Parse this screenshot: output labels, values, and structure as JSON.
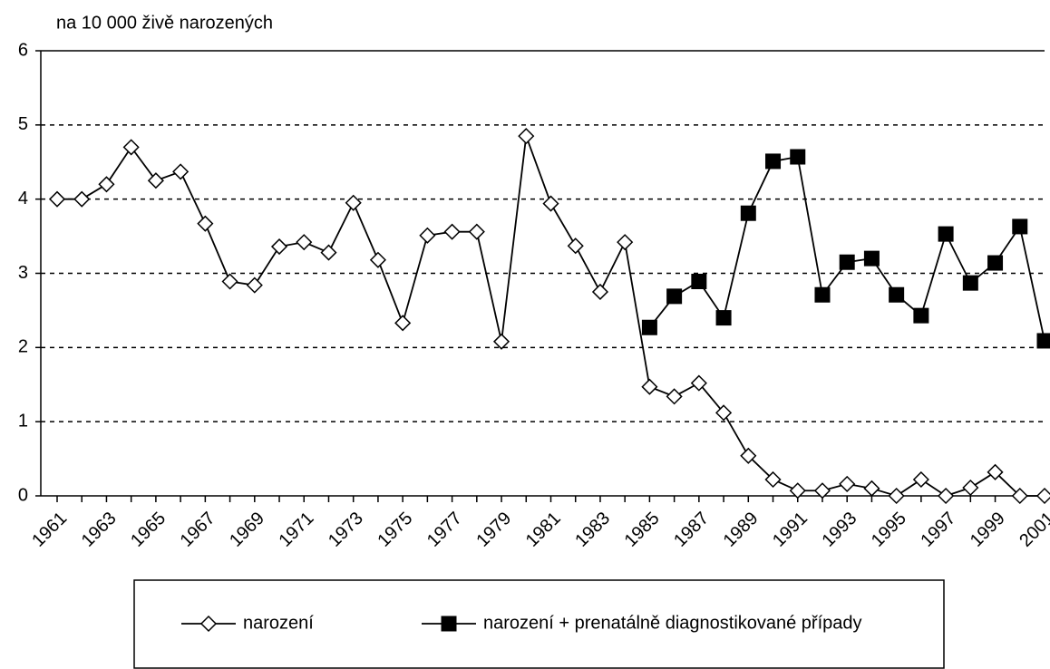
{
  "chart_data": {
    "type": "line",
    "y_label": "na 10 000 živě narozených",
    "categories": [
      "1961",
      null,
      "1963",
      null,
      "1965",
      null,
      "1967",
      null,
      "1969",
      null,
      "1971",
      null,
      "1973",
      null,
      "1975",
      null,
      "1977",
      null,
      "1979",
      null,
      "1981",
      null,
      "1983",
      null,
      "1985",
      null,
      "1987",
      null,
      "1989",
      null,
      "1991",
      null,
      "1993",
      null,
      "1995",
      null,
      "1997",
      null,
      "1999",
      null,
      "2001"
    ],
    "series": [
      {
        "name": "narození",
        "color": "#000000",
        "marker": "diamond",
        "values": [
          4.0,
          4.0,
          4.2,
          4.7,
          4.25,
          4.37,
          3.67,
          2.89,
          2.84,
          3.36,
          3.42,
          3.28,
          3.95,
          3.18,
          2.33,
          3.51,
          3.56,
          3.56,
          2.08,
          4.85,
          3.94,
          3.37,
          2.75,
          3.42,
          1.47,
          1.34,
          1.52,
          1.12,
          0.54,
          0.22,
          0.07,
          0.07,
          0.16,
          0.1,
          0,
          0.22,
          0,
          0.11,
          0.32,
          0,
          0
        ]
      },
      {
        "name": "narození + prenatálně diagnostikované případy",
        "color": "#000000",
        "marker": "square",
        "values": [
          null,
          null,
          null,
          null,
          null,
          null,
          null,
          null,
          null,
          null,
          null,
          null,
          null,
          null,
          null,
          null,
          null,
          null,
          null,
          null,
          null,
          null,
          null,
          null,
          2.27,
          2.69,
          2.89,
          2.4,
          3.81,
          4.51,
          4.57,
          2.71,
          3.15,
          3.2,
          2.71,
          2.43,
          3.53,
          2.87,
          3.14,
          3.63,
          2.09
        ]
      }
    ],
    "ylim": [
      0,
      6
    ],
    "yticks": [
      0,
      1,
      2,
      3,
      4,
      5,
      6
    ],
    "grid": true,
    "legend": "bottom"
  }
}
